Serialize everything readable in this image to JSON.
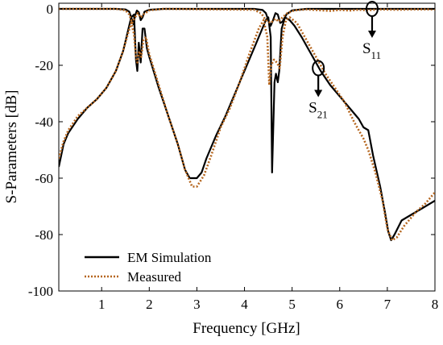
{
  "chart_data": {
    "type": "line",
    "title": "",
    "xlabel": "Frequency [GHz]",
    "ylabel": "S-Parameters [dB]",
    "xlim": [
      0.1,
      8
    ],
    "ylim": [
      -100,
      2
    ],
    "xticks": [
      1,
      2,
      3,
      4,
      5,
      6,
      7,
      8
    ],
    "yticks": [
      0,
      -20,
      -40,
      -60,
      -80,
      -100
    ],
    "xtick_labels": [
      "1",
      "2",
      "3",
      "4",
      "5",
      "6",
      "7",
      "8"
    ],
    "ytick_labels": [
      "0",
      "-20",
      "-40",
      "-60",
      "-80",
      "-100"
    ],
    "grid": false,
    "legend_position": "bottom-left",
    "legend": [
      {
        "label": "EM Simulation",
        "color": "#000000",
        "style": "solid"
      },
      {
        "label": "Measured",
        "color": "#b5651d",
        "style": "dotted"
      }
    ],
    "annotations": [
      {
        "text": "S",
        "subscript": "11",
        "x": 6.68,
        "y": 0
      },
      {
        "text": "S",
        "subscript": "21",
        "x": 5.55,
        "y": -21
      }
    ],
    "series": [
      {
        "name": "EM Simulation",
        "param": "S21",
        "color": "#000000",
        "points": [
          [
            0.1,
            -56
          ],
          [
            0.2,
            -48
          ],
          [
            0.3,
            -44
          ],
          [
            0.5,
            -39
          ],
          [
            0.7,
            -35
          ],
          [
            0.9,
            -32
          ],
          [
            1.1,
            -28
          ],
          [
            1.3,
            -22
          ],
          [
            1.45,
            -15
          ],
          [
            1.55,
            -8
          ],
          [
            1.62,
            -3
          ],
          [
            1.68,
            -2
          ],
          [
            1.72,
            -18
          ],
          [
            1.75,
            -22
          ],
          [
            1.78,
            -12
          ],
          [
            1.82,
            -19
          ],
          [
            1.86,
            -7
          ],
          [
            1.9,
            -7
          ],
          [
            1.95,
            -14
          ],
          [
            2.0,
            -17
          ],
          [
            2.2,
            -28
          ],
          [
            2.4,
            -38
          ],
          [
            2.6,
            -48
          ],
          [
            2.75,
            -57
          ],
          [
            2.85,
            -60
          ],
          [
            3.0,
            -60
          ],
          [
            3.1,
            -58
          ],
          [
            3.2,
            -53
          ],
          [
            3.4,
            -45
          ],
          [
            3.6,
            -38
          ],
          [
            3.8,
            -30
          ],
          [
            4.0,
            -22
          ],
          [
            4.2,
            -14
          ],
          [
            4.35,
            -8
          ],
          [
            4.45,
            -4
          ],
          [
            4.5,
            -3
          ],
          [
            4.55,
            -10
          ],
          [
            4.58,
            -58
          ],
          [
            4.6,
            -45
          ],
          [
            4.63,
            -26
          ],
          [
            4.66,
            -23
          ],
          [
            4.7,
            -26
          ],
          [
            4.73,
            -22
          ],
          [
            4.78,
            -7
          ],
          [
            4.85,
            -3
          ],
          [
            4.95,
            -4
          ],
          [
            5.05,
            -6
          ],
          [
            5.2,
            -10
          ],
          [
            5.4,
            -16
          ],
          [
            5.6,
            -22
          ],
          [
            5.8,
            -27
          ],
          [
            6.0,
            -31
          ],
          [
            6.2,
            -35
          ],
          [
            6.4,
            -39
          ],
          [
            6.5,
            -42
          ],
          [
            6.6,
            -43
          ],
          [
            6.7,
            -52
          ],
          [
            6.85,
            -63
          ],
          [
            6.95,
            -72
          ],
          [
            7.02,
            -79
          ],
          [
            7.08,
            -82
          ],
          [
            7.15,
            -80
          ],
          [
            7.3,
            -75
          ],
          [
            7.5,
            -73
          ],
          [
            7.7,
            -71
          ],
          [
            8.0,
            -68
          ]
        ]
      },
      {
        "name": "EM Simulation",
        "param": "S11",
        "color": "#000000",
        "points": [
          [
            0.1,
            0
          ],
          [
            1.3,
            0
          ],
          [
            1.5,
            -0.2
          ],
          [
            1.58,
            -1
          ],
          [
            1.64,
            -4
          ],
          [
            1.67,
            -5.5
          ],
          [
            1.7,
            -2.5
          ],
          [
            1.74,
            -0.6
          ],
          [
            1.78,
            -1.2
          ],
          [
            1.82,
            -4
          ],
          [
            1.86,
            -3
          ],
          [
            1.9,
            -1
          ],
          [
            2.0,
            -0.3
          ],
          [
            2.3,
            0
          ],
          [
            4.2,
            0
          ],
          [
            4.38,
            -0.4
          ],
          [
            4.45,
            -1.5
          ],
          [
            4.5,
            -4
          ],
          [
            4.55,
            -6
          ],
          [
            4.6,
            -4
          ],
          [
            4.65,
            -1.5
          ],
          [
            4.7,
            -2
          ],
          [
            4.75,
            -5
          ],
          [
            4.8,
            -4.5
          ],
          [
            4.88,
            -2
          ],
          [
            5.0,
            -0.5
          ],
          [
            5.3,
            0
          ],
          [
            8.0,
            0
          ]
        ]
      },
      {
        "name": "Measured",
        "param": "S21",
        "color": "#b5651d",
        "points": [
          [
            0.1,
            -53
          ],
          [
            0.2,
            -47
          ],
          [
            0.3,
            -43
          ],
          [
            0.5,
            -38
          ],
          [
            0.7,
            -35
          ],
          [
            0.9,
            -32
          ],
          [
            1.1,
            -28
          ],
          [
            1.3,
            -22
          ],
          [
            1.45,
            -15
          ],
          [
            1.55,
            -9
          ],
          [
            1.62,
            -5
          ],
          [
            1.68,
            -9
          ],
          [
            1.72,
            -17
          ],
          [
            1.75,
            -19
          ],
          [
            1.79,
            -15
          ],
          [
            1.83,
            -17
          ],
          [
            1.88,
            -11
          ],
          [
            1.93,
            -10
          ],
          [
            2.0,
            -16
          ],
          [
            2.2,
            -27
          ],
          [
            2.4,
            -38
          ],
          [
            2.6,
            -48
          ],
          [
            2.75,
            -57
          ],
          [
            2.9,
            -63
          ],
          [
            3.0,
            -63
          ],
          [
            3.15,
            -59
          ],
          [
            3.3,
            -52
          ],
          [
            3.5,
            -42
          ],
          [
            3.7,
            -35
          ],
          [
            3.9,
            -26
          ],
          [
            4.1,
            -16
          ],
          [
            4.3,
            -7
          ],
          [
            4.4,
            -4
          ],
          [
            4.48,
            -10
          ],
          [
            4.52,
            -27
          ],
          [
            4.56,
            -20
          ],
          [
            4.62,
            -18
          ],
          [
            4.68,
            -19
          ],
          [
            4.74,
            -21
          ],
          [
            4.8,
            -10
          ],
          [
            4.87,
            -4
          ],
          [
            4.95,
            -3
          ],
          [
            5.1,
            -5
          ],
          [
            5.3,
            -11
          ],
          [
            5.5,
            -17
          ],
          [
            5.7,
            -23
          ],
          [
            5.9,
            -28
          ],
          [
            6.1,
            -33
          ],
          [
            6.3,
            -40
          ],
          [
            6.5,
            -46
          ],
          [
            6.6,
            -50
          ],
          [
            6.75,
            -58
          ],
          [
            6.9,
            -68
          ],
          [
            7.0,
            -78
          ],
          [
            7.1,
            -82
          ],
          [
            7.2,
            -81
          ],
          [
            7.35,
            -77
          ],
          [
            7.6,
            -72
          ],
          [
            7.8,
            -69
          ],
          [
            8.0,
            -65
          ]
        ]
      },
      {
        "name": "Measured",
        "param": "S11",
        "color": "#b5651d",
        "points": [
          [
            0.1,
            0
          ],
          [
            1.3,
            0
          ],
          [
            1.5,
            -0.5
          ],
          [
            1.58,
            -2
          ],
          [
            1.64,
            -5
          ],
          [
            1.7,
            -3
          ],
          [
            1.76,
            -1.5
          ],
          [
            1.82,
            -3
          ],
          [
            1.88,
            -2
          ],
          [
            2.0,
            -0.5
          ],
          [
            2.3,
            0
          ],
          [
            4.2,
            -0.3
          ],
          [
            4.35,
            -1.5
          ],
          [
            4.45,
            -4
          ],
          [
            4.55,
            -5
          ],
          [
            4.65,
            -3.5
          ],
          [
            4.72,
            -4.5
          ],
          [
            4.8,
            -3
          ],
          [
            4.9,
            -1.5
          ],
          [
            5.05,
            -0.5
          ],
          [
            5.3,
            -0.2
          ],
          [
            5.6,
            -0.5
          ],
          [
            5.8,
            -0.7
          ],
          [
            6.0,
            -0.4
          ],
          [
            6.2,
            -0.6
          ],
          [
            6.4,
            -0.3
          ],
          [
            6.6,
            -0.5
          ],
          [
            6.8,
            -0.2
          ],
          [
            7.2,
            -0.3
          ],
          [
            7.6,
            -0.2
          ],
          [
            8.0,
            -0.2
          ]
        ]
      }
    ]
  }
}
